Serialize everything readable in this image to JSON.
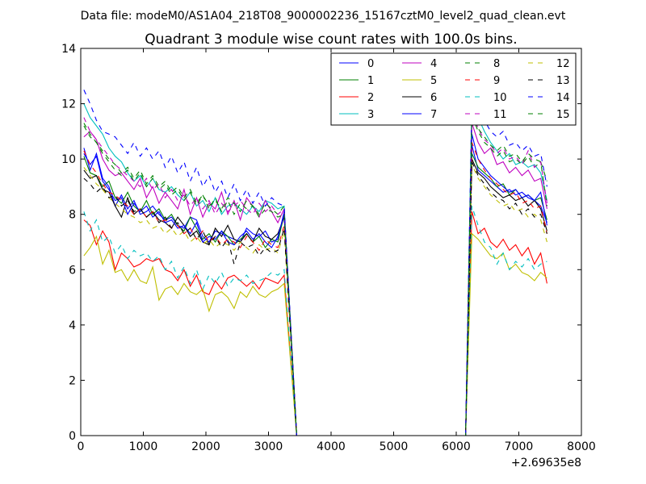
{
  "figure": {
    "suptitle": "Data file: modeM0/AS1A04_218T08_9000002236_15167cztM0_level2_quad_clean.evt"
  },
  "chart_data": {
    "type": "line",
    "title": "Quadrant 3 module wise count rates with 100.0s bins.",
    "xlabel": "",
    "ylabel": "",
    "x_offset_label": "+2.69635e8",
    "xlim": [
      0,
      8000
    ],
    "ylim": [
      0,
      14
    ],
    "xticks": [
      0,
      1000,
      2000,
      3000,
      4000,
      5000,
      6000,
      7000,
      8000
    ],
    "yticks": [
      0,
      2,
      4,
      6,
      8,
      10,
      12,
      14
    ],
    "grid": false,
    "legend": {
      "placement": "top-right",
      "columns": 4
    },
    "segments": [
      {
        "x_start": 50,
        "x_step": 100,
        "count": 33
      },
      {
        "x_start": 6250,
        "x_step": 100,
        "count": 13
      }
    ],
    "gap": [
      [
        3250,
        3450
      ],
      [
        6150,
        6250
      ]
    ],
    "series": [
      {
        "name": "0",
        "color": "#0000ff",
        "dash": "solid",
        "seg1": [
          10.4,
          9.6,
          10.2,
          9.3,
          9.0,
          8.3,
          8.7,
          8.2,
          8.5,
          8.0,
          8.1,
          8.3,
          8.0,
          7.8,
          7.9,
          7.6,
          7.5,
          7.9,
          7.8,
          7.2,
          7.0,
          7.4,
          7.3,
          7.2,
          7.1,
          7.0,
          7.5,
          7.3,
          7.2,
          7.4,
          7.0,
          7.1,
          8.1
        ],
        "seg2": [
          10.5,
          9.6,
          9.4,
          9.2,
          9.0,
          8.8,
          8.9,
          8.7,
          8.8,
          8.6,
          8.5,
          8.3,
          7.7
        ]
      },
      {
        "name": "1",
        "color": "#008000",
        "dash": "solid",
        "seg1": [
          10.1,
          9.5,
          9.4,
          9.0,
          9.2,
          8.6,
          8.4,
          8.8,
          8.3,
          8.1,
          8.5,
          8.0,
          8.2,
          7.8,
          8.0,
          7.6,
          7.4,
          7.9,
          7.5,
          7.1,
          7.3,
          7.0,
          7.4,
          7.2,
          6.9,
          7.1,
          7.3,
          7.0,
          7.2,
          6.8,
          7.1,
          7.0,
          8.0
        ],
        "seg2": [
          10.2,
          9.7,
          9.5,
          9.3,
          9.0,
          9.1,
          8.7,
          8.9,
          8.6,
          8.7,
          8.5,
          8.6,
          7.8
        ]
      },
      {
        "name": "2",
        "color": "#ff0000",
        "dash": "solid",
        "seg1": [
          7.8,
          7.6,
          6.9,
          7.4,
          7.0,
          6.0,
          6.6,
          6.4,
          6.1,
          6.2,
          6.4,
          6.3,
          6.4,
          6.0,
          5.9,
          5.6,
          6.0,
          5.4,
          5.8,
          5.2,
          5.1,
          5.6,
          5.3,
          5.7,
          5.8,
          5.6,
          5.4,
          5.6,
          5.3,
          5.7,
          5.6,
          5.5,
          5.8
        ],
        "seg2": [
          8.1,
          7.3,
          7.5,
          7.0,
          6.8,
          7.1,
          6.7,
          6.9,
          6.5,
          6.8,
          6.2,
          6.6,
          5.5
        ]
      },
      {
        "name": "3",
        "color": "#00bfbf",
        "dash": "solid",
        "seg1": [
          12.0,
          11.5,
          11.2,
          10.9,
          10.4,
          10.1,
          9.9,
          9.5,
          9.2,
          9.4,
          9.0,
          9.3,
          8.9,
          8.8,
          9.0,
          8.7,
          8.5,
          8.8,
          8.3,
          8.5,
          8.1,
          8.6,
          8.0,
          8.3,
          8.4,
          8.2,
          8.0,
          8.3,
          8.1,
          8.5,
          8.4,
          8.2,
          8.3
        ],
        "seg2": [
          12.2,
          11.5,
          11.0,
          10.6,
          10.3,
          10.0,
          10.2,
          9.8,
          9.9,
          9.7,
          9.8,
          9.5,
          8.5
        ]
      },
      {
        "name": "4",
        "color": "#bf00bf",
        "dash": "solid",
        "seg1": [
          10.8,
          11.0,
          10.7,
          10.0,
          9.6,
          9.4,
          9.5,
          9.2,
          8.9,
          9.3,
          8.6,
          9.0,
          8.4,
          8.8,
          8.5,
          8.2,
          8.9,
          8.0,
          8.6,
          7.9,
          8.4,
          8.2,
          8.8,
          8.0,
          8.5,
          7.8,
          8.6,
          8.3,
          7.9,
          8.5,
          8.1,
          7.7,
          8.2
        ],
        "seg2": [
          11.3,
          10.6,
          10.2,
          10.4,
          9.8,
          9.9,
          9.5,
          9.7,
          9.4,
          9.6,
          9.2,
          9.3,
          8.2
        ]
      },
      {
        "name": "5",
        "color": "#bfbf00",
        "dash": "solid",
        "seg1": [
          6.5,
          6.8,
          7.2,
          6.2,
          6.7,
          5.9,
          6.0,
          5.6,
          6.0,
          5.6,
          5.5,
          6.1,
          4.9,
          5.3,
          5.4,
          5.1,
          5.5,
          5.2,
          5.1,
          5.3,
          4.5,
          5.1,
          5.2,
          5.0,
          4.6,
          5.2,
          5.0,
          5.4,
          5.1,
          5.0,
          5.2,
          5.3,
          5.5
        ],
        "seg2": [
          7.3,
          7.1,
          6.8,
          6.5,
          6.4,
          6.6,
          6.0,
          6.2,
          5.9,
          5.8,
          5.6,
          5.9,
          5.7
        ]
      },
      {
        "name": "6",
        "color": "#000000",
        "dash": "solid",
        "seg1": [
          9.6,
          9.3,
          9.4,
          8.9,
          8.8,
          8.3,
          7.9,
          8.6,
          8.0,
          8.2,
          7.9,
          8.1,
          7.8,
          7.7,
          7.5,
          7.9,
          7.6,
          7.2,
          7.4,
          7.0,
          6.9,
          7.5,
          7.2,
          7.6,
          7.1,
          7.0,
          7.3,
          7.0,
          7.5,
          7.2,
          7.1,
          7.3,
          7.9
        ],
        "seg2": [
          10.0,
          9.5,
          9.3,
          9.0,
          8.8,
          8.6,
          8.7,
          8.5,
          8.6,
          8.3,
          8.5,
          8.2,
          7.4
        ]
      },
      {
        "name": "7",
        "color": "#0000ff",
        "dash": "solid",
        "seg1": [
          10.2,
          9.8,
          10.1,
          9.2,
          8.9,
          8.5,
          8.6,
          8.0,
          8.4,
          8.1,
          8.3,
          7.9,
          8.1,
          7.7,
          7.8,
          7.5,
          7.6,
          7.3,
          7.7,
          7.0,
          7.2,
          7.1,
          7.4,
          7.0,
          6.9,
          7.2,
          7.4,
          7.1,
          7.3,
          7.0,
          6.8,
          7.2,
          8.0
        ],
        "seg2": [
          10.9,
          10.0,
          9.7,
          9.4,
          9.2,
          9.0,
          8.8,
          8.9,
          8.6,
          8.7,
          8.5,
          8.8,
          7.6
        ]
      },
      {
        "name": "8",
        "color": "#008000",
        "dash": "dashed",
        "seg1": [
          11.3,
          10.9,
          10.6,
          10.3,
          10.0,
          9.8,
          9.5,
          9.7,
          9.3,
          9.6,
          9.1,
          9.4,
          9.0,
          9.2,
          8.8,
          9.0,
          8.6,
          8.9,
          8.4,
          8.7,
          8.3,
          8.5,
          8.2,
          8.6,
          8.4,
          8.1,
          8.5,
          8.3,
          8.0,
          8.4,
          8.2,
          8.0,
          8.3
        ],
        "seg2": [
          11.6,
          11.0,
          10.6,
          10.4,
          10.1,
          10.3,
          9.9,
          10.0,
          9.8,
          10.1,
          9.7,
          9.9,
          9.2
        ]
      },
      {
        "name": "9",
        "color": "#ff0000",
        "dash": "dashed",
        "seg1": [
          10.3,
          9.8,
          9.5,
          9.1,
          8.8,
          8.7,
          8.5,
          8.3,
          8.0,
          8.2,
          7.9,
          8.1,
          7.7,
          7.8,
          7.5,
          7.6,
          7.3,
          7.5,
          7.1,
          7.4,
          7.0,
          7.2,
          6.9,
          7.1,
          7.0,
          6.8,
          7.2,
          7.0,
          6.7,
          7.1,
          6.9,
          6.8,
          7.6
        ],
        "seg2": [
          10.6,
          10.0,
          9.6,
          9.3,
          9.1,
          8.9,
          8.7,
          8.8,
          8.4,
          8.5,
          8.2,
          8.3,
          7.3
        ]
      },
      {
        "name": "10",
        "color": "#00bfbf",
        "dash": "dashed",
        "seg1": [
          8.1,
          7.4,
          7.8,
          7.0,
          7.2,
          6.6,
          6.9,
          6.4,
          6.7,
          6.5,
          6.6,
          6.3,
          6.5,
          6.0,
          6.3,
          5.7,
          6.1,
          5.5,
          6.0,
          5.3,
          5.8,
          5.5,
          5.9,
          5.4,
          5.7,
          5.6,
          5.8,
          5.5,
          5.6,
          5.7,
          5.9,
          5.8,
          6.0
        ],
        "seg2": [
          8.3,
          7.6,
          7.0,
          6.8,
          6.2,
          6.6,
          6.0,
          6.3,
          6.1,
          6.4,
          6.0,
          6.2,
          6.3
        ]
      },
      {
        "name": "11",
        "color": "#bf00bf",
        "dash": "dashed",
        "seg1": [
          11.5,
          11.0,
          10.7,
          10.4,
          10.1,
          9.8,
          9.6,
          9.4,
          9.2,
          9.0,
          9.3,
          8.9,
          9.1,
          8.6,
          8.9,
          8.5,
          8.7,
          8.3,
          8.6,
          8.2,
          8.5,
          8.0,
          8.4,
          8.1,
          8.3,
          8.5,
          8.2,
          8.0,
          8.4,
          8.1,
          8.3,
          8.0,
          8.2
        ],
        "seg2": [
          11.8,
          11.1,
          10.7,
          10.5,
          10.2,
          10.4,
          10.0,
          10.1,
          9.8,
          10.3,
          9.7,
          9.9,
          8.4
        ]
      },
      {
        "name": "12",
        "color": "#bfbf00",
        "dash": "dashed",
        "seg1": [
          9.7,
          9.4,
          9.1,
          8.9,
          8.6,
          8.4,
          8.2,
          8.0,
          7.9,
          7.7,
          7.8,
          7.5,
          7.6,
          7.3,
          7.5,
          7.2,
          7.4,
          7.0,
          7.2,
          6.9,
          7.1,
          6.8,
          7.0,
          6.9,
          6.7,
          7.0,
          6.8,
          6.6,
          6.9,
          6.7,
          6.8,
          6.6,
          7.4
        ],
        "seg2": [
          9.8,
          9.3,
          9.0,
          8.7,
          8.5,
          8.3,
          8.4,
          8.1,
          8.2,
          7.9,
          8.0,
          7.8,
          7.0
        ]
      },
      {
        "name": "13",
        "color": "#000000",
        "dash": "dashed",
        "seg1": [
          9.3,
          9.1,
          8.8,
          9.0,
          8.6,
          8.7,
          8.3,
          8.5,
          8.1,
          8.2,
          7.9,
          8.1,
          7.7,
          7.9,
          7.5,
          7.7,
          7.3,
          7.5,
          7.1,
          7.4,
          6.9,
          7.2,
          6.8,
          7.1,
          6.2,
          7.0,
          6.8,
          6.9,
          6.5,
          6.8,
          6.6,
          6.7,
          7.5
        ],
        "seg2": [
          9.9,
          9.4,
          9.1,
          8.8,
          8.6,
          8.5,
          8.2,
          8.4,
          8.0,
          8.2,
          7.9,
          8.0,
          7.3
        ]
      },
      {
        "name": "14",
        "color": "#0000ff",
        "dash": "dashed",
        "seg1": [
          12.5,
          12.0,
          11.4,
          11.0,
          10.9,
          10.8,
          10.5,
          10.2,
          10.6,
          10.1,
          10.4,
          10.0,
          10.3,
          9.7,
          10.1,
          9.5,
          9.9,
          9.2,
          9.7,
          9.0,
          9.4,
          8.8,
          9.2,
          8.6,
          9.1,
          8.5,
          8.9,
          8.4,
          8.8,
          8.3,
          8.6,
          8.4,
          8.3
        ],
        "seg2": [
          12.2,
          11.7,
          11.4,
          11.0,
          10.8,
          11.0,
          10.5,
          10.6,
          10.3,
          10.5,
          10.1,
          10.2,
          9.0
        ]
      },
      {
        "name": "15",
        "color": "#008000",
        "dash": "dashed",
        "seg1": [
          11.2,
          10.8,
          10.6,
          10.2,
          9.9,
          9.6,
          9.4,
          9.6,
          9.2,
          9.5,
          9.0,
          9.3,
          8.9,
          9.1,
          8.7,
          8.9,
          8.5,
          8.8,
          8.3,
          8.7,
          8.2,
          8.6,
          8.1,
          8.5,
          8.0,
          8.4,
          8.2,
          8.3,
          7.9,
          8.2,
          8.1,
          7.9,
          8.0
        ],
        "seg2": [
          11.6,
          11.1,
          10.8,
          10.5,
          10.3,
          10.5,
          10.1,
          10.2,
          9.9,
          10.2,
          10.0,
          9.9,
          8.3
        ]
      }
    ]
  }
}
